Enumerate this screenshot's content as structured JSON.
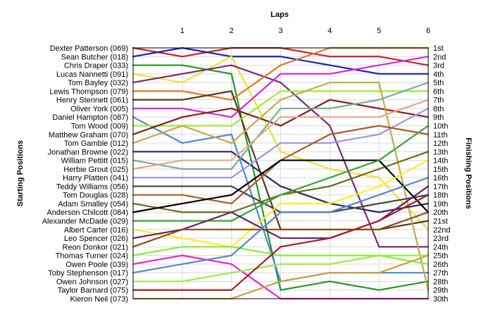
{
  "chart_data": {
    "type": "line",
    "subtype": "bump-chart",
    "title": "",
    "x_title": "Laps",
    "left_title": "Starting Positions",
    "right_title": "Finishing Positions",
    "laps": [
      1,
      2,
      3,
      4,
      5,
      6
    ],
    "xlim": [
      0,
      6
    ],
    "ylim": [
      1,
      30
    ],
    "y_inverted": true,
    "grid": true,
    "legend": "none",
    "finishing_labels": [
      "1st",
      "2nd",
      "3rd",
      "4th",
      "5th",
      "6th",
      "7th",
      "8th",
      "9th",
      "10th",
      "11th",
      "12th",
      "13th",
      "14th",
      "15th",
      "16th",
      "17th",
      "18th",
      "19th",
      "20th",
      "21st",
      "22nd",
      "23rd",
      "24th",
      "25th",
      "26th",
      "27th",
      "28th",
      "29th",
      "30th"
    ],
    "series": [
      {
        "name": "Dexter Patterson (069)",
        "color": "#cc2222",
        "positions": [
          1,
          2,
          1,
          1,
          2,
          2,
          3
        ]
      },
      {
        "name": "Sean Butcher (018)",
        "color": "#1f1fbf",
        "positions": [
          2,
          1,
          2,
          2,
          3,
          4,
          4
        ]
      },
      {
        "name": "Chris Draper (033)",
        "color": "#229922",
        "positions": [
          3,
          3,
          4,
          29,
          28,
          29,
          28
        ]
      },
      {
        "name": "Lucas Nannetti (091)",
        "color": "#e6e62e",
        "positions": [
          4,
          5,
          2,
          13,
          15,
          16,
          22
        ]
      },
      {
        "name": "Tom Bayley (032)",
        "color": "#7a2a7a",
        "positions": [
          5,
          4,
          3,
          5,
          10,
          24,
          24
        ]
      },
      {
        "name": "Lewis Thompson (079)",
        "color": "#e07b20",
        "positions": [
          6,
          6,
          7,
          3,
          1,
          1,
          1
        ]
      },
      {
        "name": "Henry Stennett (061)",
        "color": "#5a3a1a",
        "positions": [
          7,
          7,
          6,
          22,
          22,
          22,
          21
        ]
      },
      {
        "name": "Oliver York (005)",
        "color": "#dd22dd",
        "positions": [
          8,
          8,
          9,
          4,
          4,
          3,
          2
        ]
      },
      {
        "name": "Daniel Hampton (087)",
        "color": "#4a8ad6",
        "positions": [
          9,
          12,
          11,
          28,
          27,
          27,
          27
        ]
      },
      {
        "name": "Tom Wood (009)",
        "color": "#99ee33",
        "positions": [
          10,
          10,
          10,
          6,
          6,
          6,
          6
        ]
      },
      {
        "name": "Matthew Graham (070)",
        "color": "#8a1a1a",
        "positions": [
          11,
          9,
          8,
          10,
          7,
          8,
          9
        ]
      },
      {
        "name": "Tom Gamble (012)",
        "color": "#c8a848",
        "positions": [
          12,
          10,
          12,
          7,
          5,
          5,
          29
        ]
      },
      {
        "name": "Jonathan Browne (022)",
        "color": "#2a2a5a",
        "positions": [
          13,
          13,
          13,
          17,
          19,
          20,
          19
        ]
      },
      {
        "name": "William Pettitt (015)",
        "color": "#7aaa99",
        "positions": [
          14,
          15,
          15,
          8,
          8,
          7,
          5
        ]
      },
      {
        "name": "Herbie Grout (025)",
        "color": "#e8a888",
        "positions": [
          15,
          14,
          14,
          9,
          9,
          9,
          7
        ]
      },
      {
        "name": "Harry Platten (041)",
        "color": "#9999dd",
        "positions": [
          16,
          16,
          16,
          12,
          12,
          11,
          8
        ]
      },
      {
        "name": "Teddy Williams (056)",
        "color": "#444444",
        "positions": [
          17,
          17,
          17,
          20,
          20,
          19,
          18
        ]
      },
      {
        "name": "Tom Douglas (028)",
        "color": "#b05a22",
        "positions": [
          18,
          18,
          19,
          14,
          11,
          10,
          11
        ]
      },
      {
        "name": "Adam Smalley (054)",
        "color": "#6a6a1a",
        "positions": [
          19,
          20,
          20,
          18,
          17,
          15,
          13
        ]
      },
      {
        "name": "Anderson Chilcott (084)",
        "color": "#000000",
        "positions": [
          20,
          19,
          18,
          14,
          14,
          14,
          20
        ]
      },
      {
        "name": "Alexander McDade (029)",
        "color": "#33aa33",
        "positions": [
          21,
          21,
          21,
          18,
          16,
          14,
          10
        ]
      },
      {
        "name": "Albert Carter (016)",
        "color": "#ffee22",
        "positions": [
          22,
          23,
          24,
          19,
          19,
          17,
          14
        ]
      },
      {
        "name": "Leo Spencer (026)",
        "color": "#662266",
        "positions": [
          23,
          22,
          20,
          23,
          23,
          21,
          17
        ]
      },
      {
        "name": "Reon Donkor (021)",
        "color": "#8a4a1a",
        "positions": [
          24,
          22,
          22,
          22,
          22,
          22,
          20
        ]
      },
      {
        "name": "Thomas Turner (024)",
        "color": "#88ee33",
        "positions": [
          25,
          24,
          24,
          25,
          25,
          25,
          26
        ]
      },
      {
        "name": "Owen Poole (039)",
        "color": "#ee22cc",
        "positions": [
          26,
          25,
          26,
          30,
          30,
          30,
          30
        ]
      },
      {
        "name": "Toby Stephenson (017)",
        "color": "#5588cc",
        "positions": [
          27,
          26,
          25,
          20,
          20,
          18,
          16
        ]
      },
      {
        "name": "Owen Johnson (027)",
        "color": "#99ee44",
        "positions": [
          28,
          28,
          27,
          26,
          26,
          25,
          25
        ]
      },
      {
        "name": "Taylor Barnard (075)",
        "color": "#aa1a2a",
        "positions": [
          29,
          29,
          29,
          24,
          23,
          21,
          18
        ]
      },
      {
        "name": "Kieron Neil (073)",
        "color": "#c8a040",
        "positions": [
          30,
          30,
          30,
          28,
          27,
          27,
          25
        ]
      }
    ]
  }
}
